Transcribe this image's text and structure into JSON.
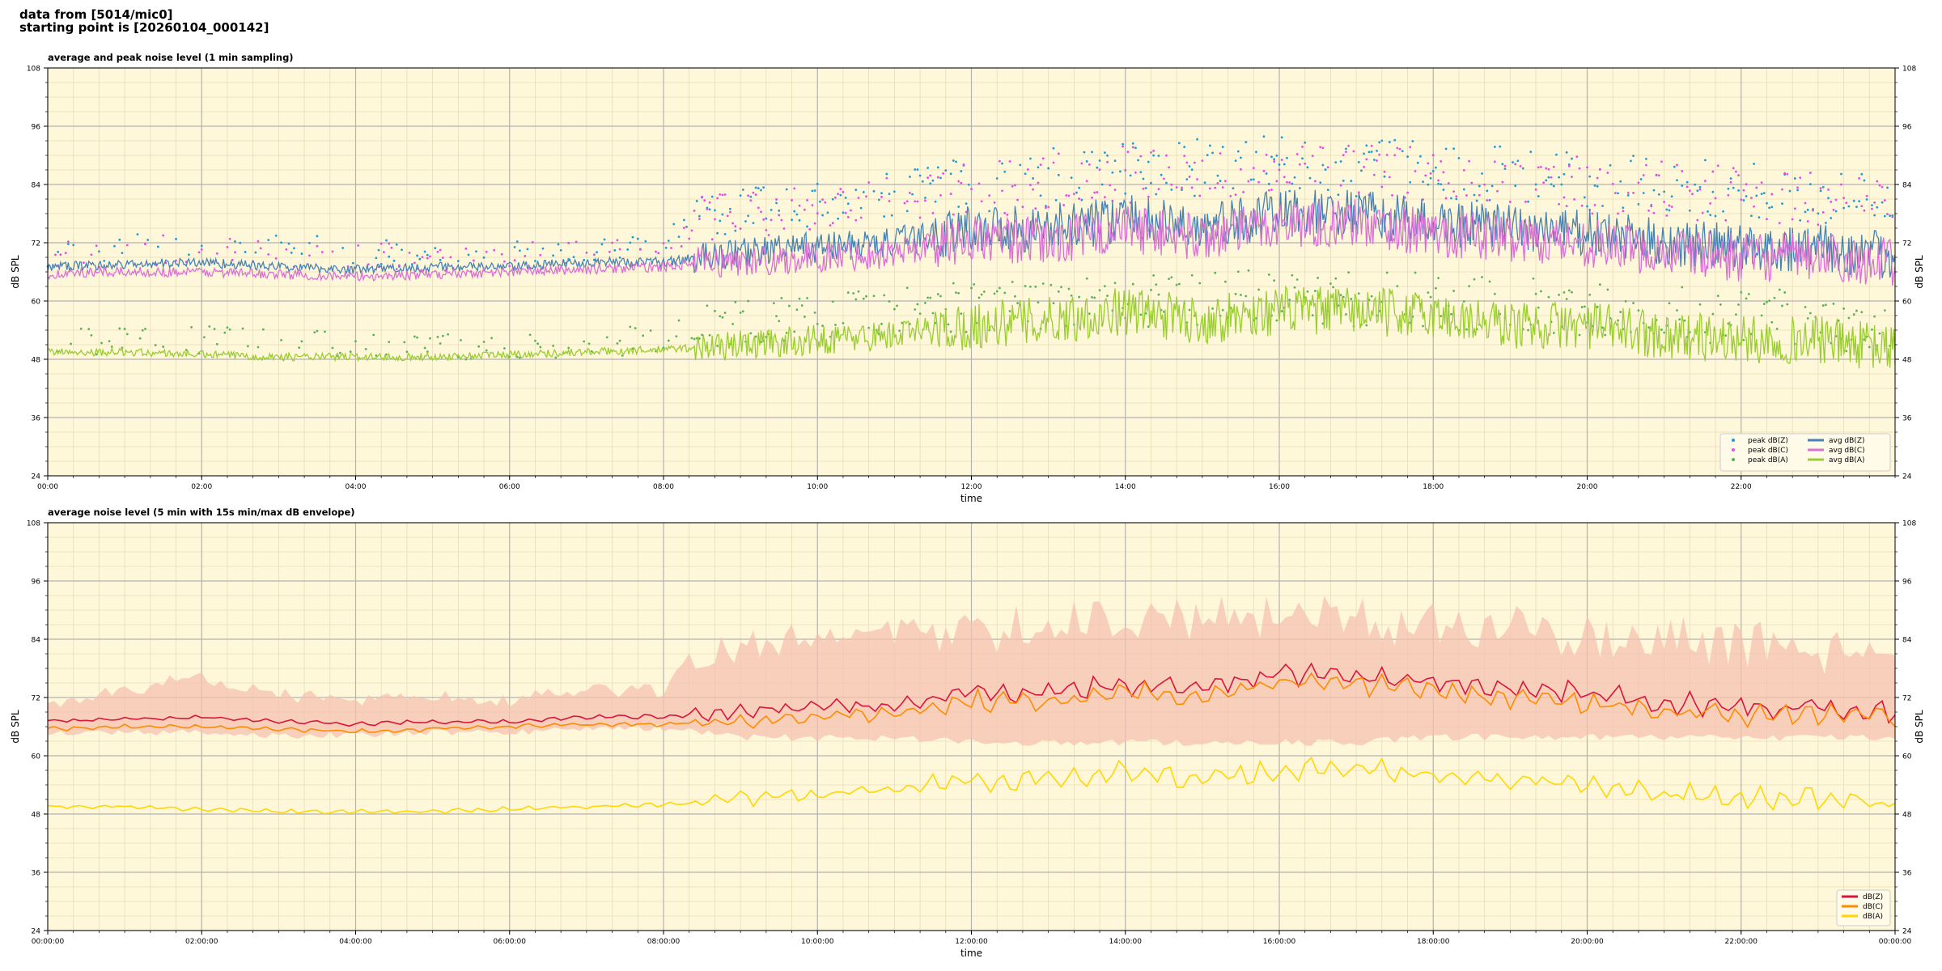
{
  "header": {
    "line1": "data from [5014/mic0]",
    "line2": "starting point is [20260104_000142]"
  },
  "colors": {
    "plot_bg": "#fff7d9",
    "grid_major": "#b3b3b3",
    "grid_minor": "#e6dcb8",
    "dBZ_peak": "#1f9bd6",
    "dBC_peak": "#e64ce6",
    "dBA_peak": "#59b359",
    "dBZ_avg": "#4682b4",
    "dBC_avg": "#da70d6",
    "dBA_avg": "#9acd32",
    "dBZ_5min": "#dc143c",
    "dBC_5min": "#ff8c00",
    "dBA_5min": "#ffd700",
    "envelope": "#f4c2b0"
  },
  "chart_data": [
    {
      "type": "line",
      "title": "average and peak noise level (1 min sampling)",
      "xlabel": "time",
      "ylabel": "dB SPL",
      "ylim": [
        24,
        108
      ],
      "xlim": [
        0,
        24
      ],
      "yticks": [
        "24",
        "36",
        "48",
        "60",
        "72",
        "84",
        "96",
        "108"
      ],
      "xticks": [
        "00:00",
        "02:00",
        "04:00",
        "06:00",
        "08:00",
        "10:00",
        "12:00",
        "14:00",
        "16:00",
        "18:00",
        "20:00",
        "22:00"
      ],
      "grid": true,
      "legend_position": "lower-right",
      "legend": [
        {
          "label": "peak dB(Z)",
          "kind": "dot",
          "color_key": "dBZ_peak"
        },
        {
          "label": "peak dB(C)",
          "kind": "dot",
          "color_key": "dBC_peak"
        },
        {
          "label": "peak dB(A)",
          "kind": "dot",
          "color_key": "dBA_peak"
        },
        {
          "label": "avg dB(Z)",
          "kind": "line",
          "color_key": "dBZ_avg"
        },
        {
          "label": "avg dB(C)",
          "kind": "line",
          "color_key": "dBC_avg"
        },
        {
          "label": "avg dB(A)",
          "kind": "line",
          "color_key": "dBA_avg"
        }
      ],
      "series": [
        {
          "name": "avg dB(Z)",
          "style": "line",
          "color_key": "dBZ_avg",
          "x": [
            0,
            1,
            2,
            3,
            4,
            5,
            6,
            7,
            8,
            8.5,
            9,
            10,
            11,
            12,
            13,
            14,
            15,
            16,
            17,
            18,
            19,
            20,
            21,
            22,
            23,
            24
          ],
          "y": [
            67,
            67.5,
            68,
            67,
            66.5,
            67,
            67,
            68,
            68,
            69,
            70,
            71,
            72,
            75,
            75,
            77,
            75,
            78,
            78,
            76,
            75,
            74,
            72,
            71,
            71,
            69
          ]
        },
        {
          "name": "avg dB(C)",
          "style": "line",
          "color_key": "dBC_avg",
          "x": [
            0,
            1,
            2,
            3,
            4,
            5,
            6,
            7,
            8,
            8.5,
            9,
            10,
            11,
            12,
            13,
            14,
            15,
            16,
            17,
            18,
            19,
            20,
            21,
            22,
            23,
            24
          ],
          "y": [
            65.5,
            66,
            66,
            65.5,
            65,
            65.5,
            66,
            66.5,
            67,
            68,
            68,
            69,
            70,
            73,
            72,
            75,
            73,
            76,
            76,
            74,
            73,
            72,
            70,
            69,
            69,
            68
          ]
        },
        {
          "name": "avg dB(A)",
          "style": "line",
          "color_key": "dBA_avg",
          "x": [
            0,
            1,
            2,
            3,
            4,
            5,
            6,
            7,
            8,
            8.5,
            9,
            10,
            11,
            12,
            13,
            14,
            15,
            16,
            17,
            18,
            19,
            20,
            21,
            22,
            23,
            24
          ],
          "y": [
            49.5,
            49.5,
            49,
            48.5,
            48.5,
            48.5,
            49,
            49.5,
            50,
            50.5,
            51,
            52,
            53,
            55,
            56,
            58,
            56,
            58,
            58,
            57,
            55,
            55,
            53,
            52,
            52,
            50
          ]
        },
        {
          "name": "peak dB(Z)",
          "style": "scatter",
          "color_key": "dBZ_peak",
          "x": [
            0,
            2,
            4,
            6,
            8,
            8.5,
            10,
            12,
            14,
            16,
            18,
            20,
            22,
            24
          ],
          "y": [
            70,
            72,
            70,
            70,
            71,
            78,
            80,
            84,
            87,
            88,
            87,
            85,
            83,
            80
          ]
        },
        {
          "name": "peak dB(C)",
          "style": "scatter",
          "color_key": "dBC_peak",
          "x": [
            0,
            2,
            4,
            6,
            8,
            8.5,
            10,
            12,
            14,
            16,
            18,
            20,
            22,
            24
          ],
          "y": [
            69,
            71,
            69,
            69,
            70,
            77,
            79,
            83,
            86,
            87,
            86,
            84,
            82,
            79
          ]
        },
        {
          "name": "peak dB(A)",
          "style": "scatter",
          "color_key": "dBA_peak",
          "x": [
            0,
            2,
            4,
            6,
            8,
            8.5,
            10,
            12,
            14,
            16,
            18,
            20,
            22,
            24
          ],
          "y": [
            52,
            52,
            51,
            51,
            52,
            55,
            57,
            59,
            60,
            61,
            60,
            58,
            57,
            55
          ]
        }
      ]
    },
    {
      "type": "line",
      "title": "average noise level (5 min with 15s min/max dB envelope)",
      "xlabel": "time",
      "ylabel": "dB SPL",
      "ylim": [
        24,
        108
      ],
      "xlim": [
        0,
        24
      ],
      "yticks": [
        "24",
        "36",
        "48",
        "60",
        "72",
        "84",
        "96",
        "108"
      ],
      "xticks": [
        "00:00:00",
        "02:00:00",
        "04:00:00",
        "06:00:00",
        "08:00:00",
        "10:00:00",
        "12:00:00",
        "14:00:00",
        "16:00:00",
        "18:00:00",
        "20:00:00",
        "22:00:00",
        "00:00:00"
      ],
      "grid": true,
      "legend_position": "lower-right",
      "legend": [
        {
          "label": "dB(Z)",
          "kind": "line",
          "color_key": "dBZ_5min"
        },
        {
          "label": "dB(C)",
          "kind": "line",
          "color_key": "dBC_5min"
        },
        {
          "label": "dB(A)",
          "kind": "line",
          "color_key": "dBA_5min"
        }
      ],
      "envelope": {
        "x": [
          0,
          1,
          2,
          3,
          4,
          5,
          6,
          7,
          8,
          8.5,
          9,
          10,
          11,
          12,
          13,
          14,
          15,
          16,
          17,
          18,
          19,
          20,
          21,
          22,
          23,
          24
        ],
        "min": [
          64,
          64,
          64,
          63.5,
          63.5,
          64,
          64,
          65,
          65,
          64,
          63,
          63,
          63,
          62,
          62,
          62,
          62,
          62,
          62,
          63,
          63,
          63,
          63,
          63,
          63,
          63
        ],
        "max": [
          72,
          75,
          78,
          74,
          73,
          74,
          73,
          75,
          75,
          85,
          86,
          88,
          89,
          90,
          92,
          93,
          93,
          93,
          93,
          92,
          91,
          90,
          89,
          88,
          87,
          84
        ]
      },
      "series": [
        {
          "name": "dB(Z)",
          "style": "line",
          "color_key": "dBZ_5min",
          "x": [
            0,
            1,
            2,
            3,
            4,
            5,
            6,
            7,
            8,
            8.5,
            9,
            10,
            11,
            12,
            13,
            14,
            15,
            16,
            17,
            18,
            19,
            20,
            21,
            22,
            23,
            24
          ],
          "y": [
            67,
            67.5,
            68,
            67,
            66.5,
            67,
            67,
            68,
            68,
            68.5,
            69,
            70,
            70.5,
            73,
            73,
            75,
            74,
            77,
            77,
            75,
            74,
            73,
            71,
            70,
            70,
            69
          ]
        },
        {
          "name": "dB(C)",
          "style": "line",
          "color_key": "dBC_5min",
          "x": [
            0,
            1,
            2,
            3,
            4,
            5,
            6,
            7,
            8,
            8.5,
            9,
            10,
            11,
            12,
            13,
            14,
            15,
            16,
            17,
            18,
            19,
            20,
            21,
            22,
            23,
            24
          ],
          "y": [
            65.5,
            66,
            66,
            65.5,
            65,
            65.5,
            66,
            66.5,
            66.5,
            67,
            67,
            68,
            68.5,
            71,
            71,
            73,
            72,
            75,
            75,
            73,
            72,
            71,
            69.5,
            68.5,
            68.5,
            67.5
          ]
        },
        {
          "name": "dB(A)",
          "style": "line",
          "color_key": "dBA_5min",
          "x": [
            0,
            1,
            2,
            3,
            4,
            5,
            6,
            7,
            8,
            8.5,
            9,
            10,
            11,
            12,
            13,
            14,
            15,
            16,
            17,
            18,
            19,
            20,
            21,
            22,
            23,
            24
          ],
          "y": [
            49.5,
            49.5,
            49,
            48.5,
            48.5,
            48.5,
            49,
            49.5,
            50,
            50.5,
            51,
            52,
            53,
            55,
            55,
            57,
            55,
            57,
            57,
            56,
            55,
            54,
            52.5,
            51.5,
            51.5,
            50
          ]
        }
      ]
    }
  ]
}
